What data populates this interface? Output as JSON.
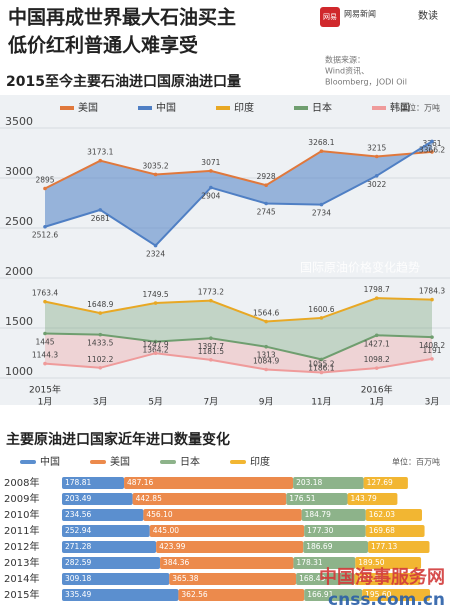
{
  "header": {
    "title": [
      "中国再成世界最大石油买主",
      "低价红利普通人难享受"
    ],
    "logo": "网易",
    "logo_name": "网易新闻",
    "brand": "数读"
  },
  "chart_data": [
    {
      "type": "line",
      "title": "2015至今主要石油进口国原油进口量",
      "source": [
        "数据来源：",
        "Wind资讯、",
        "Bloomberg，JODI Oil"
      ],
      "unit": "单位：万吨",
      "background_label": "国际原油价格变化趋势",
      "annotations": [
        "2015年",
        "2016年"
      ],
      "categories": [
        "1月",
        "3月",
        "5月",
        "7月",
        "9月",
        "11月",
        "1月",
        "3月"
      ],
      "ylim": [
        1000,
        3600
      ],
      "yticks": [
        1000,
        1500,
        2000,
        2500,
        3000,
        3500
      ],
      "grid": true,
      "series": [
        {
          "name": "美国",
          "color": "#e0783c",
          "values": [
            2895,
            3173.1,
            3035.2,
            3071,
            2928,
            3268.1,
            3215,
            3261
          ]
        },
        {
          "name": "中国",
          "color": "#4f7fc4",
          "values": [
            2512.6,
            2681,
            2324,
            2904,
            2745,
            2734,
            3022,
            3366.2
          ]
        },
        {
          "name": "印度",
          "color": "#e8a824",
          "values": [
            1763.4,
            1648.9,
            1749.5,
            1773.2,
            1564.6,
            1600.6,
            1798.7,
            1784.3
          ]
        },
        {
          "name": "日本",
          "color": "#6f9e6f",
          "values": [
            1445,
            1433.5,
            1364.2,
            1397.7,
            1313,
            1186.1,
            1427.1,
            1408.2
          ]
        },
        {
          "name": "韩国",
          "color": "#ef9b9b",
          "values": [
            1144.3,
            1102.2,
            1247.9,
            1181.5,
            1084.9,
            1055.2,
            1098.2,
            1191
          ]
        }
      ]
    },
    {
      "type": "stacked-bar",
      "title": "主要原油进口国家近年进口数量变化",
      "unit": "单位：百万吨",
      "categories": [
        "2008年",
        "2009年",
        "2010年",
        "2011年",
        "2012年",
        "2013年",
        "2014年",
        "2015年"
      ],
      "series": [
        {
          "name": "中国",
          "color": "#5b8fcf",
          "values": [
            178.81,
            203.49,
            234.56,
            252.94,
            271.28,
            282.59,
            309.18,
            335.49
          ],
          "value_labels": [
            "178.81",
            "203.49",
            "234.56",
            "252.94",
            "271.28",
            "282.59",
            "309.18",
            "335.49"
          ]
        },
        {
          "name": "美国",
          "color": "#ec8a4c",
          "values": [
            487.16,
            442.85,
            456.1,
            445,
            423.99,
            384.36,
            365.38,
            362.56
          ],
          "value_labels": [
            "487.16",
            "442.85",
            "456.10",
            "445.00",
            "423.99",
            "384.36",
            "365.38",
            "362.56"
          ]
        },
        {
          "name": "日本",
          "color": "#8db38a",
          "values": [
            203.18,
            176.51,
            184.79,
            177.3,
            186.69,
            178.31,
            168.4,
            166.91
          ],
          "value_labels": [
            "203.18",
            "176.51",
            "184.79",
            "177.30",
            "186.69",
            "178.31",
            "168.40",
            "166.91"
          ]
        },
        {
          "name": "印度",
          "color": "#f2b632",
          "values": [
            127.69,
            143.79,
            162.03,
            169.68,
            177.13,
            189.5,
            189.34,
            195.6
          ],
          "value_labels": [
            "127.69",
            "143.79",
            "162.03",
            "169.68",
            "177.13",
            "189.50",
            "189.34",
            "195.60"
          ]
        }
      ]
    }
  ],
  "footer": {
    "site": "中国海事服务网",
    "url": "cnss.com.cn"
  }
}
